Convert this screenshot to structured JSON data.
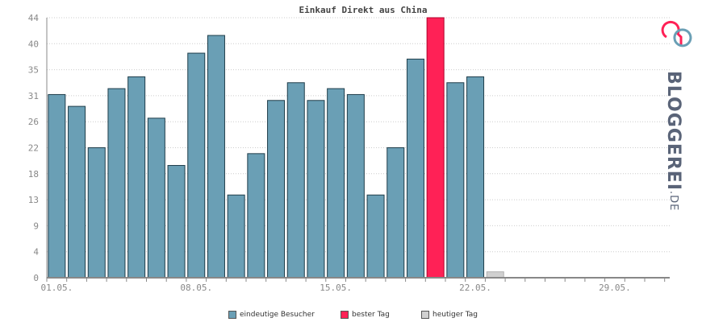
{
  "chart_data": {
    "type": "bar",
    "title": "Einkauf Direkt aus China",
    "xlabel": "",
    "ylabel": "",
    "ylim": [
      0,
      44
    ],
    "y_ticks": [
      "0",
      "4",
      "9",
      "13",
      "18",
      "22",
      "26",
      "31",
      "35",
      "40",
      "44"
    ],
    "x_tick_labels": [
      {
        "day": 1,
        "label": "01.05."
      },
      {
        "day": 8,
        "label": "08.05."
      },
      {
        "day": 15,
        "label": "15.05."
      },
      {
        "day": 22,
        "label": "22.05."
      },
      {
        "day": 29,
        "label": "29.05."
      }
    ],
    "days": 31,
    "values": [
      31,
      29,
      22,
      32,
      34,
      27,
      19,
      38,
      41,
      14,
      21,
      30,
      33,
      30,
      32,
      31,
      14,
      22,
      37,
      44,
      33,
      34,
      1,
      0,
      0,
      0,
      0,
      0,
      0,
      0,
      0
    ],
    "best_day_index": 19,
    "today_index": 22,
    "colors": {
      "bar": "#6a9fb5",
      "best": "#ff2156",
      "today": "#d0d0d0",
      "grid": "#cccccc",
      "axis": "#888888"
    },
    "legend": [
      {
        "label": "eindeutige Besucher",
        "color": "#6a9fb5"
      },
      {
        "label": "bester Tag",
        "color": "#ff2156"
      },
      {
        "label": "heutiger Tag",
        "color": "#d0d0d0"
      }
    ],
    "grid": true,
    "legend_position": "bottom"
  },
  "logo": {
    "text": "BLOGGEREI",
    "suffix": ".DE"
  }
}
